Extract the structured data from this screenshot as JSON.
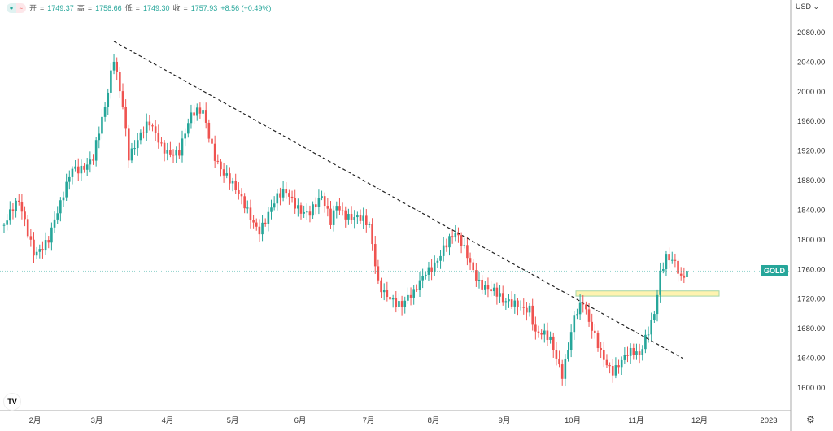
{
  "header": {
    "open_label": "开",
    "open": "1749.37",
    "high_label": "高",
    "high": "1758.66",
    "low_label": "低",
    "low": "1749.30",
    "close_label": "收",
    "close": "1757.93",
    "change": "+8.56 (+0.49%)"
  },
  "currency": "USD",
  "symbol_tag": "GOLD",
  "logo": "TV",
  "colors": {
    "up": "#26a69a",
    "down": "#ef5350",
    "trendline": "#222222",
    "zone": "#fff3b0"
  },
  "chart_data": {
    "type": "candlestick",
    "ylim": [
      1580,
      2100
    ],
    "yticks": [
      "2080.00",
      "2040.00",
      "2000.00",
      "1960.00",
      "1920.00",
      "1880.00",
      "1840.00",
      "1800.00",
      "1760.00",
      "1720.00",
      "1680.00",
      "1640.00",
      "1600.00"
    ],
    "xticks": [
      "2月",
      "3月",
      "4月",
      "5月",
      "6月",
      "7月",
      "8月",
      "9月",
      "10月",
      "11月",
      "12月",
      "2023"
    ],
    "close_keypoints_by_trading_day": [
      [
        0,
        1820
      ],
      [
        5,
        1845
      ],
      [
        10,
        1790
      ],
      [
        15,
        1800
      ],
      [
        19,
        1840
      ],
      [
        23,
        1900
      ],
      [
        30,
        1910
      ],
      [
        34,
        1970
      ],
      [
        37,
        2045
      ],
      [
        40,
        1990
      ],
      [
        42,
        1920
      ],
      [
        49,
        1950
      ],
      [
        53,
        1930
      ],
      [
        59,
        1920
      ],
      [
        63,
        1960
      ],
      [
        67,
        1975
      ],
      [
        71,
        1920
      ],
      [
        74,
        1890
      ],
      [
        78,
        1860
      ],
      [
        82,
        1840
      ],
      [
        86,
        1820
      ],
      [
        92,
        1850
      ],
      [
        95,
        1860
      ],
      [
        103,
        1840
      ],
      [
        107,
        1850
      ],
      [
        110,
        1820
      ],
      [
        112,
        1850
      ],
      [
        119,
        1830
      ],
      [
        123,
        1810
      ],
      [
        126,
        1740
      ],
      [
        130,
        1730
      ],
      [
        134,
        1710
      ],
      [
        138,
        1720
      ],
      [
        142,
        1760
      ],
      [
        148,
        1790
      ],
      [
        152,
        1800
      ],
      [
        156,
        1780
      ],
      [
        160,
        1750
      ],
      [
        164,
        1730
      ],
      [
        168,
        1710
      ],
      [
        173,
        1720
      ],
      [
        177,
        1710
      ],
      [
        179,
        1670
      ],
      [
        184,
        1660
      ],
      [
        188,
        1625
      ],
      [
        192,
        1700
      ],
      [
        195,
        1710
      ],
      [
        197,
        1680
      ],
      [
        201,
        1650
      ],
      [
        205,
        1630
      ],
      [
        210,
        1640
      ],
      [
        214,
        1640
      ],
      [
        216,
        1670
      ],
      [
        219,
        1710
      ],
      [
        221,
        1760
      ],
      [
        223,
        1775
      ],
      [
        226,
        1760
      ],
      [
        228,
        1740
      ],
      [
        230,
        1757.93
      ]
    ],
    "trendline": {
      "from": [
        37,
        2068
      ],
      "to": [
        228,
        1640
      ]
    },
    "resistance_zone": [
      1724,
      1731
    ],
    "last_price": 1757.93
  }
}
